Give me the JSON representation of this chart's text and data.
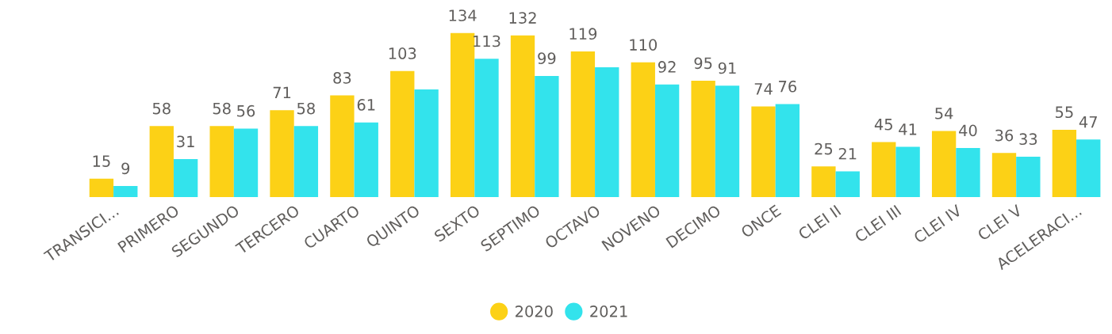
{
  "chart_data": {
    "type": "bar",
    "categories": [
      "TRANSICI...",
      "PRIMERO",
      "SEGUNDO",
      "TERCERO",
      "CUARTO",
      "QUINTO",
      "SEXTO",
      "SEPTIMO",
      "OCTAVO",
      "NOVENO",
      "DECIMO",
      "ONCE",
      "CLEI II",
      "CLEI III",
      "CLEI IV",
      "CLEI V",
      "ACELERACI..."
    ],
    "series": [
      {
        "name": "2020",
        "color": "#fcd116",
        "values": [
          15,
          58,
          58,
          71,
          83,
          103,
          134,
          132,
          119,
          110,
          95,
          74,
          25,
          45,
          54,
          36,
          55
        ],
        "value_labels": [
          "15",
          "58",
          "58",
          "71",
          "83",
          "103",
          "134",
          "132",
          "119",
          "110",
          "95",
          "74",
          "25",
          "45",
          "54",
          "36",
          "55"
        ]
      },
      {
        "name": "2021",
        "color": "#33e3ec",
        "values": [
          9,
          31,
          56,
          58,
          61,
          88,
          113,
          99,
          106,
          92,
          91,
          76,
          21,
          41,
          40,
          33,
          47
        ],
        "value_labels": [
          "9",
          "31",
          "56",
          "58",
          "61",
          null,
          "113",
          "99",
          null,
          "92",
          "91",
          "76",
          "21",
          "41",
          "40",
          "33",
          "47"
        ]
      }
    ],
    "legend": "bottom"
  }
}
